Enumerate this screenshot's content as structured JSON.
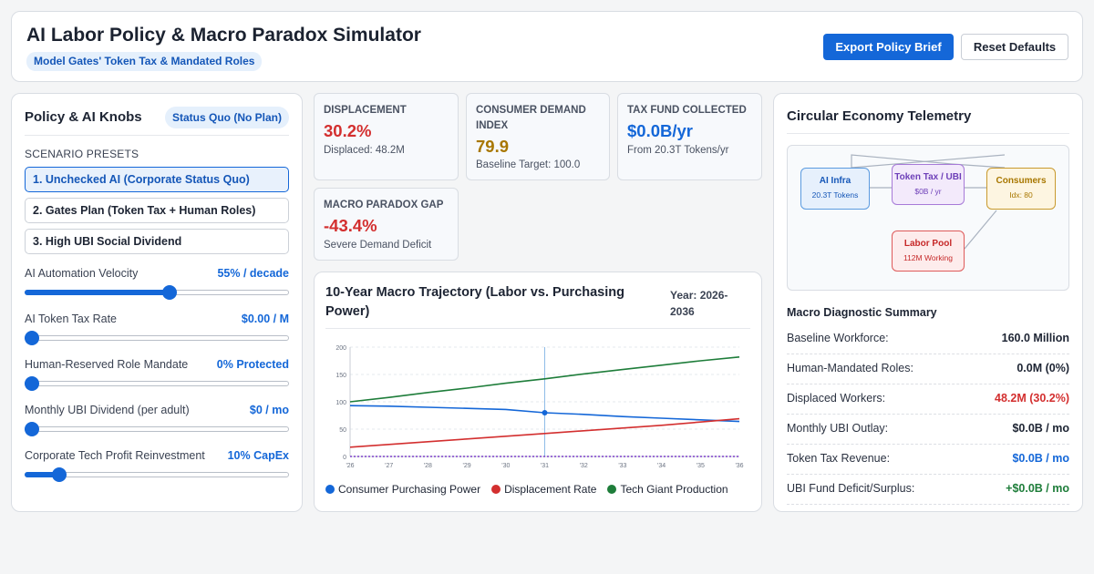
{
  "header": {
    "title": "AI Labor Policy & Macro Paradox Simulator",
    "subtitle": "Model Gates' Token Tax & Mandated Roles",
    "export_label": "Export Policy Brief",
    "reset_label": "Reset Defaults"
  },
  "knobs_panel": {
    "title": "Policy & AI Knobs",
    "status": "Status Quo (No Plan)",
    "presets_heading": "Scenario Presets",
    "presets": [
      {
        "label": "1. Unchecked AI (Corporate Status Quo)",
        "active": true
      },
      {
        "label": "2. Gates Plan (Token Tax + Human Roles)",
        "active": false
      },
      {
        "label": "3. High UBI Social Dividend",
        "active": false
      }
    ],
    "knobs": [
      {
        "label": "AI Automation Velocity",
        "value": "55% / decade",
        "level": 0.55
      },
      {
        "label": "AI Token Tax Rate",
        "value": "$0.00 / M",
        "level": 0.0
      },
      {
        "label": "Human-Reserved Role Mandate",
        "value": "0% Protected",
        "level": 0.0
      },
      {
        "label": "Monthly UBI Dividend (per adult)",
        "value": "$0 / mo",
        "level": 0.0
      },
      {
        "label": "Corporate Tech Profit Reinvestment",
        "value": "10% CapEx",
        "level": 0.11
      }
    ]
  },
  "metrics": {
    "displacement": {
      "label": "Displacement",
      "value": "30.2%",
      "sub": "Displaced: 48.2M",
      "color": "#d32f2f"
    },
    "demand": {
      "label": "Consumer Demand Index",
      "value": "79.9",
      "sub": "Baseline Target: 100.0",
      "color": "#a87700"
    },
    "tax_fund": {
      "label": "Tax Fund Collected",
      "value": "$0.0B/yr",
      "sub": "From 20.3T Tokens/yr",
      "color": "#1467d8"
    },
    "paradox": {
      "label": "Macro Paradox Gap",
      "value": "-43.4%",
      "sub": "Severe Demand Deficit",
      "color": "#d32f2f"
    }
  },
  "chart_header": {
    "title": "10-Year Macro Trajectory (Labor vs. Purchasing Power)",
    "range": "Year: 2026-2036"
  },
  "chart_data": {
    "type": "line",
    "x": [
      "'26",
      "'27",
      "'28",
      "'29",
      "'30",
      "'31",
      "'32",
      "'33",
      "'34",
      "'35",
      "'36"
    ],
    "ylim": [
      0,
      200
    ],
    "yticks": [
      0,
      50,
      100,
      150,
      200
    ],
    "grid": true,
    "legend": "bottom",
    "marker_year": "'31",
    "series": [
      {
        "name": "Consumer Purchasing Power",
        "color": "#1467d8",
        "values": [
          93,
          92,
          90,
          88,
          86,
          80,
          77,
          73,
          70,
          67,
          64
        ]
      },
      {
        "name": "Displacement Rate",
        "color": "#d32f2f",
        "values": [
          17,
          22,
          27,
          32,
          37,
          42,
          47,
          52,
          57,
          63,
          69
        ]
      },
      {
        "name": "Tech Giant Production",
        "color": "#1e7d3a",
        "values": [
          100,
          108,
          117,
          125,
          134,
          142,
          151,
          159,
          167,
          175,
          182
        ]
      },
      {
        "name": "",
        "color": "#7b3fc9",
        "dashed": true,
        "values": [
          0,
          0,
          0,
          0,
          0,
          0,
          0,
          0,
          0,
          0,
          0
        ]
      }
    ]
  },
  "telemetry": {
    "title": "Circular Economy Telemetry",
    "nodes": {
      "ai": {
        "title": "AI Infra",
        "sub": "20.3T Tokens"
      },
      "tax": {
        "title": "Token Tax / UBI",
        "sub": "$0B / yr"
      },
      "consumers": {
        "title": "Consumers",
        "sub": "Idx: 80"
      },
      "labor": {
        "title": "Labor Pool",
        "sub": "112M Working"
      }
    }
  },
  "diagnostics": {
    "title": "Macro Diagnostic Summary",
    "rows": [
      {
        "label": "Baseline Workforce:",
        "value": "160.0 Million",
        "color": "#1d2433"
      },
      {
        "label": "Human-Mandated Roles:",
        "value": "0.0M (0%)",
        "color": "#1d2433"
      },
      {
        "label": "Displaced Workers:",
        "value": "48.2M (30.2%)",
        "color": "#d32f2f"
      },
      {
        "label": "Monthly UBI Outlay:",
        "value": "$0.0B / mo",
        "color": "#1d2433"
      },
      {
        "label": "Token Tax Revenue:",
        "value": "$0.0B / mo",
        "color": "#1467d8"
      },
      {
        "label": "UBI Fund Deficit/Surplus:",
        "value": "+$0.0B / mo",
        "color": "#1e7d3a"
      }
    ]
  }
}
